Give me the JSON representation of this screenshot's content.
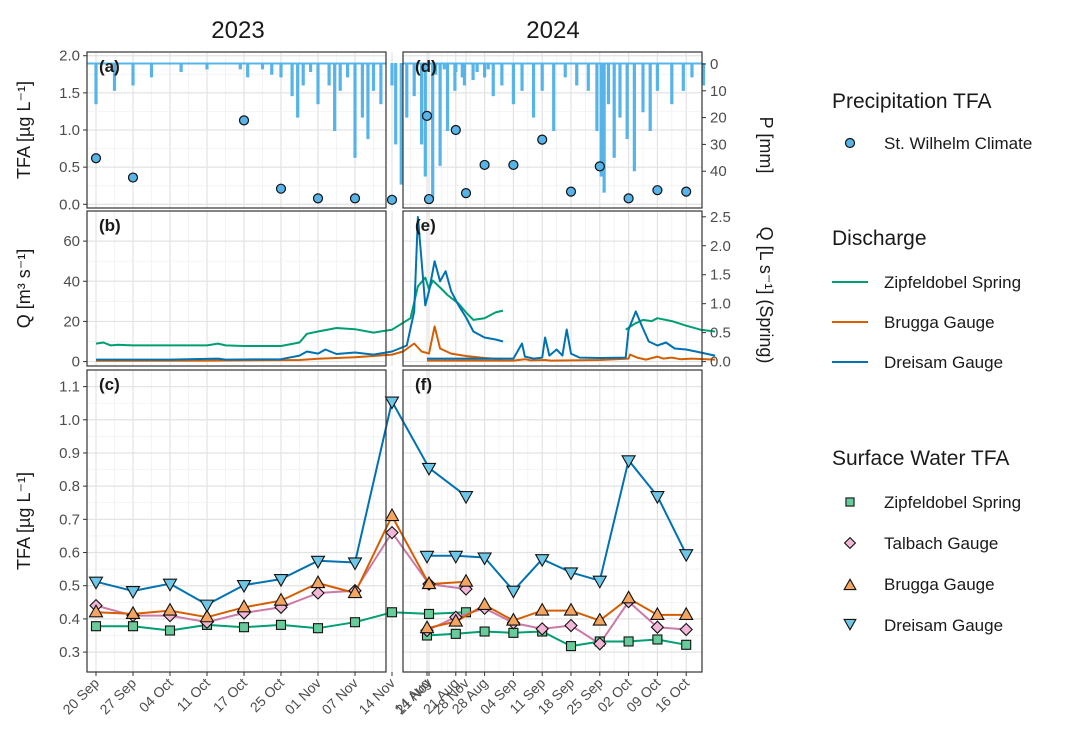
{
  "chart_data": {
    "type": "multi-panel line, bar and scatter",
    "years": [
      "2023",
      "2024"
    ],
    "axis_titles": {
      "a_left": "TFA [µg L⁻¹]",
      "b_left": "Q [m³ s⁻¹]",
      "c_left": "TFA [µg L⁻¹]",
      "a_right": "P [mm]",
      "b_right": "Q [L s⁻¹] (Spring)"
    },
    "panel_labels": [
      "(a)",
      "(b)",
      "(c)",
      "(d)",
      "(e)",
      "(f)"
    ],
    "ticks": {
      "tfa_top": {
        "min": 0,
        "max": 2,
        "values": [
          0.0,
          0.5,
          1.0,
          1.5,
          2.0
        ],
        "labels": [
          "0.0",
          "0.5",
          "1.0",
          "1.5",
          "2.0"
        ]
      },
      "precip": {
        "min": 0,
        "max": 50,
        "reversed": true,
        "values": [
          0,
          10,
          20,
          30,
          40
        ],
        "labels": [
          "0",
          "10",
          "20",
          "30",
          "40"
        ]
      },
      "q_left": {
        "min": 0,
        "max": 72,
        "values": [
          0,
          20,
          40,
          60
        ],
        "labels": [
          "0",
          "20",
          "40",
          "60"
        ]
      },
      "q_right": {
        "min": 0,
        "max": 2.5,
        "values": [
          0,
          0.5,
          1.0,
          1.5,
          2.0,
          2.5
        ],
        "labels": [
          "0.0",
          "0.5",
          "1.0",
          "1.5",
          "2.0",
          "2.5"
        ]
      },
      "tfa_bottom": {
        "min": 0.3,
        "max": 1.1,
        "values": [
          0.3,
          0.4,
          0.5,
          0.6,
          0.7,
          0.8,
          0.9,
          1.0,
          1.1
        ],
        "labels": [
          "0.3",
          "0.4",
          "0.5",
          "0.6",
          "0.7",
          "0.8",
          "0.9",
          "1.0",
          "1.1"
        ]
      }
    },
    "x_2023": [
      "20 Sep",
      "27 Sep",
      "04 Oct",
      "11 Oct",
      "17 Oct",
      "25 Oct",
      "01 Nov",
      "07 Nov",
      "14 Nov",
      "21 Nov",
      "28 Nov"
    ],
    "x_2024": [
      "14 Aug",
      "21 Aug",
      "28 Aug",
      "04 Sep",
      "11 Sep",
      "18 Sep",
      "25 Sep",
      "02 Oct",
      "09 Oct",
      "16 Oct"
    ],
    "precip_tfa": {
      "2023": [
        {
          "date": "20 Sep",
          "y": 0.62
        },
        {
          "date": "27 Sep",
          "y": 0.36
        },
        {
          "date": "17 Oct",
          "y": 1.13
        },
        {
          "date": "25 Oct",
          "y": 0.21
        },
        {
          "date": "01 Nov",
          "y": 0.08
        },
        {
          "date": "07 Nov",
          "y": 0.08
        },
        {
          "date": "14 Nov",
          "y": 0.06
        },
        {
          "date": "21 Nov",
          "y": 0.07
        },
        {
          "date": "28 Nov",
          "y": 0.15
        }
      ],
      "2024": [
        {
          "date": "14 Aug",
          "y": 1.19
        },
        {
          "date": "21 Aug",
          "y": 1.0
        },
        {
          "date": "28 Aug",
          "y": 0.53
        },
        {
          "date": "04 Sep",
          "y": 0.53
        },
        {
          "date": "11 Sep",
          "y": 0.87
        },
        {
          "date": "18 Sep",
          "y": 0.17
        },
        {
          "date": "25 Sep",
          "y": 0.51
        },
        {
          "date": "02 Oct",
          "y": 0.08
        },
        {
          "date": "09 Oct",
          "y": 0.19
        },
        {
          "date": "16 Oct",
          "y": 0.17
        }
      ]
    },
    "precip_bars_mm": {
      "2023": [
        [
          0.0,
          15
        ],
        [
          0.5,
          10
        ],
        [
          1.0,
          8
        ],
        [
          1.5,
          5
        ],
        [
          2.3,
          3
        ],
        [
          3.0,
          2
        ],
        [
          3.9,
          2
        ],
        [
          4.1,
          5
        ],
        [
          4.5,
          2
        ],
        [
          4.75,
          4
        ],
        [
          5.0,
          5
        ],
        [
          5.3,
          12
        ],
        [
          5.45,
          20
        ],
        [
          5.6,
          8
        ],
        [
          5.8,
          3
        ],
        [
          6.0,
          15
        ],
        [
          6.3,
          8
        ],
        [
          6.45,
          25
        ],
        [
          6.6,
          10
        ],
        [
          6.8,
          5
        ],
        [
          7.0,
          35
        ],
        [
          7.2,
          20
        ],
        [
          7.35,
          28
        ],
        [
          7.5,
          10
        ],
        [
          7.7,
          15
        ],
        [
          8.0,
          8
        ],
        [
          8.1,
          30
        ],
        [
          8.25,
          45
        ],
        [
          8.4,
          20
        ],
        [
          8.6,
          12
        ],
        [
          8.8,
          30
        ],
        [
          8.9,
          42
        ],
        [
          9.1,
          50
        ],
        [
          9.3,
          38
        ],
        [
          9.5,
          25
        ],
        [
          9.7,
          10
        ],
        [
          9.9,
          5
        ],
        [
          10.3,
          3
        ],
        [
          10.6,
          2
        ]
      ],
      "2024": [
        [
          0.3,
          4
        ],
        [
          0.6,
          2
        ],
        [
          1.0,
          3
        ],
        [
          1.3,
          8
        ],
        [
          1.6,
          6
        ],
        [
          2.0,
          5
        ],
        [
          2.3,
          12
        ],
        [
          2.6,
          8
        ],
        [
          3.0,
          15
        ],
        [
          3.3,
          10
        ],
        [
          3.7,
          20
        ],
        [
          4.0,
          10
        ],
        [
          4.4,
          25
        ],
        [
          4.8,
          5
        ],
        [
          5.2,
          8
        ],
        [
          5.6,
          10
        ],
        [
          5.9,
          25
        ],
        [
          6.05,
          42
        ],
        [
          6.15,
          48
        ],
        [
          6.3,
          15
        ],
        [
          6.5,
          35
        ],
        [
          6.7,
          20
        ],
        [
          6.95,
          28
        ],
        [
          7.2,
          40
        ],
        [
          7.5,
          18
        ],
        [
          7.75,
          25
        ],
        [
          8.0,
          10
        ],
        [
          8.5,
          15
        ],
        [
          8.9,
          10
        ],
        [
          9.2,
          5
        ],
        [
          9.6,
          8
        ]
      ]
    },
    "discharge": {
      "2023": {
        "Zipfeldobel Spring": [
          [
            0.0,
            0.31
          ],
          [
            0.2,
            0.33
          ],
          [
            0.4,
            0.28
          ],
          [
            0.6,
            0.29
          ],
          [
            1.0,
            0.28
          ],
          [
            2.0,
            0.28
          ],
          [
            3.0,
            0.28
          ],
          [
            3.3,
            0.31
          ],
          [
            3.5,
            0.28
          ],
          [
            4.0,
            0.27
          ],
          [
            5.0,
            0.27
          ],
          [
            5.5,
            0.33
          ],
          [
            5.7,
            0.48
          ],
          [
            6.0,
            0.52
          ],
          [
            6.5,
            0.58
          ],
          [
            7.0,
            0.56
          ],
          [
            7.5,
            0.5
          ],
          [
            8.0,
            0.55
          ],
          [
            8.5,
            0.75
          ],
          [
            8.7,
            1.3
          ],
          [
            8.9,
            1.45
          ],
          [
            9.0,
            1.25
          ],
          [
            9.1,
            1.4
          ],
          [
            9.3,
            1.28
          ],
          [
            9.5,
            1.15
          ],
          [
            9.8,
            1.0
          ],
          [
            10.0,
            0.85
          ],
          [
            10.2,
            0.72
          ],
          [
            10.5,
            0.75
          ],
          [
            10.8,
            0.85
          ],
          [
            11.0,
            0.88
          ]
        ],
        "Brugga Gauge": [
          [
            0.0,
            0.4
          ],
          [
            3.0,
            0.5
          ],
          [
            5.5,
            0.8
          ],
          [
            6.0,
            1.4
          ],
          [
            6.5,
            1.8
          ],
          [
            7.0,
            2.2
          ],
          [
            7.5,
            2.8
          ],
          [
            8.0,
            3.5
          ],
          [
            8.3,
            5.0
          ],
          [
            8.6,
            9.0
          ],
          [
            8.8,
            5.0
          ],
          [
            9.0,
            4.0
          ],
          [
            9.15,
            17.5
          ],
          [
            9.3,
            6.5
          ],
          [
            9.6,
            4.0
          ],
          [
            10.0,
            2.8
          ],
          [
            10.5,
            1.8
          ],
          [
            11.0,
            1.2
          ]
        ],
        "Dreisam Gauge": [
          [
            0.0,
            1.0
          ],
          [
            2.0,
            1.0
          ],
          [
            3.3,
            1.5
          ],
          [
            3.5,
            1.0
          ],
          [
            5.0,
            1.2
          ],
          [
            5.5,
            3.0
          ],
          [
            5.7,
            5.0
          ],
          [
            6.0,
            4.0
          ],
          [
            6.2,
            6.0
          ],
          [
            6.5,
            3.8
          ],
          [
            7.0,
            4.5
          ],
          [
            7.5,
            3.5
          ],
          [
            8.0,
            5.0
          ],
          [
            8.4,
            8.0
          ],
          [
            8.6,
            25.0
          ],
          [
            8.7,
            72.0
          ],
          [
            8.8,
            50.0
          ],
          [
            8.9,
            28.0
          ],
          [
            9.0,
            35.0
          ],
          [
            9.15,
            50.0
          ],
          [
            9.3,
            40.0
          ],
          [
            9.45,
            45.0
          ],
          [
            9.6,
            35.0
          ],
          [
            9.8,
            28.0
          ],
          [
            10.0,
            22.0
          ],
          [
            10.2,
            15.0
          ],
          [
            10.5,
            12.0
          ],
          [
            10.8,
            11.0
          ],
          [
            11.0,
            10.0
          ]
        ]
      },
      "2024": {
        "Zipfeldobel Spring": [
          [
            6.9,
            0.55
          ],
          [
            7.2,
            0.65
          ],
          [
            7.5,
            0.72
          ],
          [
            7.8,
            0.7
          ],
          [
            8.0,
            0.75
          ],
          [
            8.5,
            0.7
          ],
          [
            9.0,
            0.62
          ],
          [
            9.5,
            0.55
          ],
          [
            10.0,
            0.52
          ]
        ],
        "Brugga Gauge": [
          [
            0.0,
            0.5
          ],
          [
            3.0,
            0.5
          ],
          [
            3.4,
            1.2
          ],
          [
            3.6,
            0.6
          ],
          [
            4.1,
            0.8
          ],
          [
            4.3,
            0.5
          ],
          [
            6.0,
            0.8
          ],
          [
            7.0,
            1.5
          ],
          [
            7.05,
            3.5
          ],
          [
            7.3,
            2.0
          ],
          [
            7.6,
            1.0
          ],
          [
            8.0,
            2.5
          ],
          [
            8.2,
            1.5
          ],
          [
            8.5,
            2.0
          ],
          [
            8.8,
            1.2
          ],
          [
            9.2,
            1.5
          ],
          [
            10.0,
            1.0
          ]
        ],
        "Dreisam Gauge": [
          [
            0.0,
            1.5
          ],
          [
            3.0,
            1.5
          ],
          [
            3.3,
            9.0
          ],
          [
            3.4,
            2.5
          ],
          [
            3.7,
            1.5
          ],
          [
            4.0,
            2.0
          ],
          [
            4.1,
            12.0
          ],
          [
            4.25,
            3.0
          ],
          [
            4.5,
            6.0
          ],
          [
            4.7,
            3.0
          ],
          [
            4.85,
            16.0
          ],
          [
            5.0,
            4.0
          ],
          [
            5.3,
            2.0
          ],
          [
            6.0,
            1.8
          ],
          [
            6.9,
            2.0
          ],
          [
            7.0,
            16.0
          ],
          [
            7.25,
            25.0
          ],
          [
            7.45,
            18.0
          ],
          [
            7.7,
            10.0
          ],
          [
            8.0,
            8.0
          ],
          [
            8.3,
            9.5
          ],
          [
            8.6,
            6.5
          ],
          [
            9.0,
            6.0
          ],
          [
            9.5,
            4.5
          ],
          [
            10.0,
            3.0
          ]
        ]
      }
    },
    "surface_tfa": {
      "2023": [
        {
          "name": "Zipfeldobel Spring",
          "values": [
            0.378,
            0.378,
            0.365,
            0.382,
            0.375,
            0.382,
            0.372,
            0.39,
            0.42,
            0.415,
            0.42
          ]
        },
        {
          "name": "Talbach Gauge",
          "values": [
            0.44,
            0.41,
            0.41,
            0.39,
            0.418,
            0.435,
            0.478,
            0.485,
            0.66,
            0.505,
            0.49
          ]
        },
        {
          "name": "Brugga Gauge",
          "values": [
            0.42,
            0.415,
            0.425,
            0.405,
            0.435,
            0.455,
            0.508,
            0.478,
            0.71,
            0.505,
            0.512
          ]
        },
        {
          "name": "Dreisam Gauge",
          "values": [
            0.512,
            0.484,
            0.506,
            0.443,
            0.502,
            0.52,
            0.575,
            0.57,
            1.055,
            0.855,
            0.77
          ]
        }
      ],
      "2024": [
        {
          "name": "Zipfeldobel Spring",
          "values": [
            0.35,
            0.355,
            0.362,
            0.358,
            0.362,
            0.318,
            0.332,
            0.332,
            0.338,
            0.322
          ]
        },
        {
          "name": "Talbach Gauge",
          "values": [
            0.365,
            0.405,
            0.432,
            0.388,
            0.37,
            0.38,
            0.325,
            0.452,
            0.375,
            0.368
          ]
        },
        {
          "name": "Brugga Gauge",
          "values": [
            0.372,
            0.392,
            0.442,
            0.395,
            0.425,
            0.425,
            0.395,
            0.462,
            0.412,
            0.412
          ]
        },
        {
          "name": "Dreisam Gauge",
          "values": [
            0.59,
            0.59,
            0.585,
            0.485,
            0.58,
            0.54,
            0.515,
            0.878,
            0.77,
            0.595
          ]
        }
      ]
    },
    "colors": {
      "precip_bar": "#56B4E9",
      "spring": "#009E73",
      "brugga": "#D55E00",
      "dreisam": "#0072B2",
      "talbach": "#CC79A7",
      "spring_fill": "#66CC99",
      "talbach_fill": "#F2B6D6",
      "brugga_fill": "#F4A55F",
      "dreisam_fill": "#6FC7E8"
    },
    "legend": {
      "precip_title": "Precipitation TFA",
      "precip_items": [
        {
          "label": "St. Wilhelm Climate",
          "shape": "circle"
        }
      ],
      "discharge_title": "Discharge",
      "discharge_items": [
        {
          "label": "Zipfeldobel Spring",
          "color": "#009E73"
        },
        {
          "label": "Brugga Gauge",
          "color": "#D55E00"
        },
        {
          "label": "Dreisam Gauge",
          "color": "#0072B2"
        }
      ],
      "surface_title": "Surface Water TFA",
      "surface_items": [
        {
          "label": "Zipfeldobel Spring",
          "shape": "square",
          "fill": "#66CC99"
        },
        {
          "label": "Talbach Gauge",
          "shape": "diamond",
          "fill": "#F2B6D6"
        },
        {
          "label": "Brugga Gauge",
          "shape": "triangle-up",
          "fill": "#F4A55F"
        },
        {
          "label": "Dreisam Gauge",
          "shape": "triangle-down",
          "fill": "#6FC7E8"
        }
      ],
      "placement": "right"
    }
  }
}
